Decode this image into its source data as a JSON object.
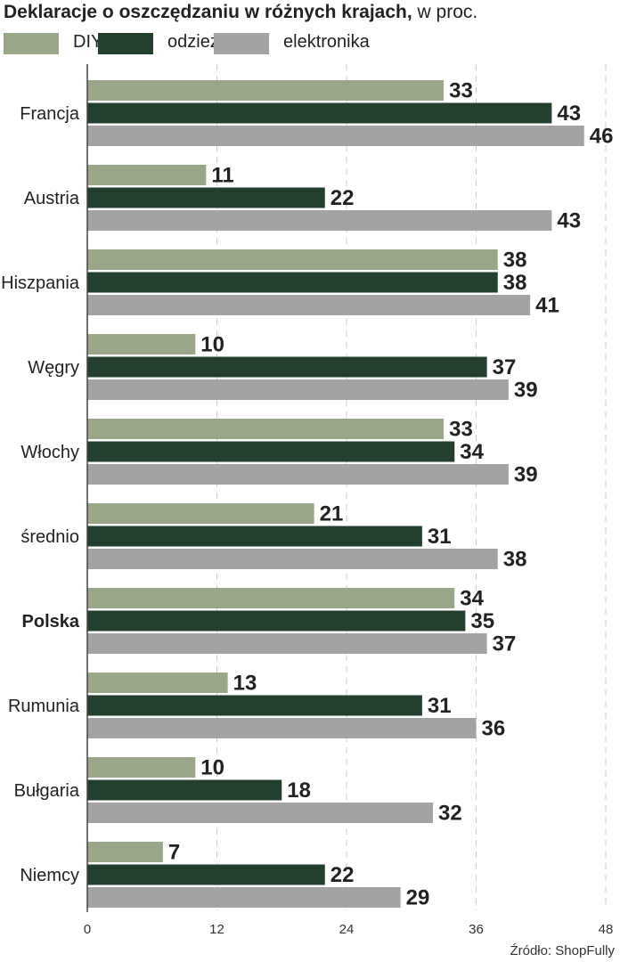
{
  "title": {
    "bold": "Deklaracje o oszczędzaniu w różnych krajach,",
    "rest": " w proc."
  },
  "source": "Źródło: ShopFully",
  "colors": {
    "DIY": "#9aa688",
    "odzież": "#22402d",
    "elektronika": "#a3a3a3",
    "grid": "#cccccc",
    "axis": "#444444"
  },
  "chart_data": {
    "type": "bar",
    "orientation": "horizontal",
    "categories": [
      "Francja",
      "Austria",
      "Hiszpania",
      "Węgry",
      "Włochy",
      "średnio",
      "Polska",
      "Rumunia",
      "Bułgaria",
      "Niemcy"
    ],
    "highlight_category": "Polska",
    "series": [
      {
        "name": "DIY",
        "values": [
          33,
          11,
          38,
          10,
          33,
          21,
          34,
          13,
          10,
          7
        ]
      },
      {
        "name": "odzież",
        "values": [
          43,
          22,
          38,
          37,
          34,
          31,
          35,
          31,
          18,
          22
        ]
      },
      {
        "name": "elektronika",
        "values": [
          46,
          43,
          41,
          39,
          39,
          38,
          37,
          36,
          32,
          29
        ]
      }
    ],
    "xlim": [
      0,
      48
    ],
    "xticks": [
      0,
      12,
      24,
      36,
      48
    ],
    "grid": true,
    "legend_position": "top-left"
  }
}
